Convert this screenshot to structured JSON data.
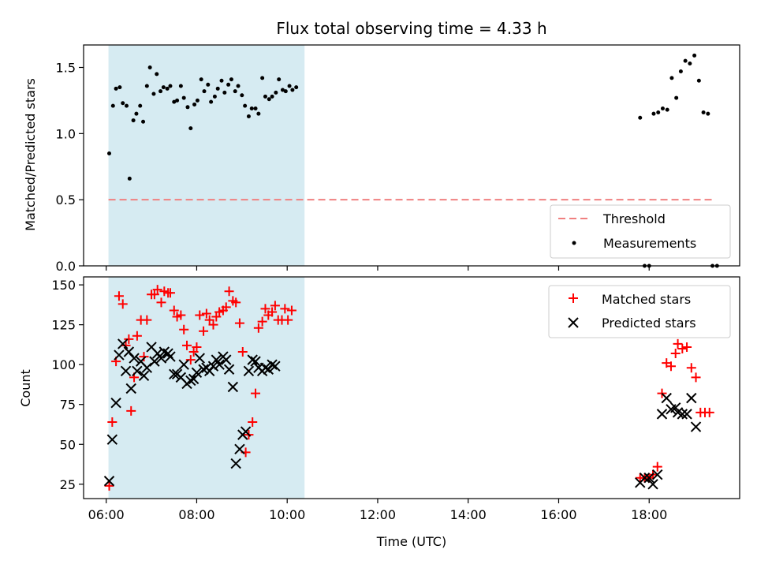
{
  "title": "Flux total observing time = 4.33 h",
  "colors": {
    "shade": "#add8e6",
    "threshold": "#f08080",
    "matched": "#ff0000",
    "predicted": "#000000",
    "measurement": "#000000"
  },
  "chart_data": [
    {
      "type": "scatter",
      "panel": "top",
      "ylabel": "Matched/Predicted stars",
      "xlim": [
        "05:30",
        "20:00"
      ],
      "ylim": [
        0,
        1.67
      ],
      "yticks": [
        "0.0",
        "0.5",
        "1.0",
        "1.5"
      ],
      "shaded_region": [
        "06:03",
        "10:23"
      ],
      "threshold": {
        "y": 0.5,
        "x_range": [
          "06:03",
          "19:25"
        ],
        "style": "dashed"
      },
      "legend": {
        "position": "lower-right",
        "entries": [
          "Threshold",
          "Measurements"
        ]
      },
      "series": [
        {
          "name": "Measurements",
          "marker": "dot",
          "points": [
            [
              "06:04",
              0.85
            ],
            [
              "06:09",
              1.21
            ],
            [
              "06:13",
              1.34
            ],
            [
              "06:18",
              1.35
            ],
            [
              "06:22",
              1.23
            ],
            [
              "06:27",
              1.21
            ],
            [
              "06:31",
              0.66
            ],
            [
              "06:36",
              1.1
            ],
            [
              "06:40",
              1.15
            ],
            [
              "06:45",
              1.21
            ],
            [
              "06:49",
              1.09
            ],
            [
              "06:54",
              1.36
            ],
            [
              "06:58",
              1.5
            ],
            [
              "07:03",
              1.3
            ],
            [
              "07:07",
              1.45
            ],
            [
              "07:12",
              1.32
            ],
            [
              "07:16",
              1.35
            ],
            [
              "07:21",
              1.34
            ],
            [
              "07:25",
              1.36
            ],
            [
              "07:30",
              1.24
            ],
            [
              "07:34",
              1.25
            ],
            [
              "07:39",
              1.36
            ],
            [
              "07:43",
              1.27
            ],
            [
              "07:48",
              1.2
            ],
            [
              "07:52",
              1.04
            ],
            [
              "07:57",
              1.22
            ],
            [
              "08:01",
              1.25
            ],
            [
              "08:06",
              1.41
            ],
            [
              "08:10",
              1.32
            ],
            [
              "08:15",
              1.37
            ],
            [
              "08:19",
              1.24
            ],
            [
              "08:24",
              1.28
            ],
            [
              "08:28",
              1.34
            ],
            [
              "08:33",
              1.4
            ],
            [
              "08:37",
              1.31
            ],
            [
              "08:42",
              1.37
            ],
            [
              "08:46",
              1.41
            ],
            [
              "08:51",
              1.32
            ],
            [
              "08:55",
              1.36
            ],
            [
              "09:00",
              1.29
            ],
            [
              "09:04",
              1.21
            ],
            [
              "09:09",
              1.13
            ],
            [
              "09:13",
              1.19
            ],
            [
              "09:18",
              1.19
            ],
            [
              "09:22",
              1.15
            ],
            [
              "09:27",
              1.42
            ],
            [
              "09:31",
              1.28
            ],
            [
              "09:36",
              1.26
            ],
            [
              "09:40",
              1.28
            ],
            [
              "09:45",
              1.31
            ],
            [
              "09:49",
              1.41
            ],
            [
              "09:54",
              1.33
            ],
            [
              "09:58",
              1.32
            ],
            [
              "10:03",
              1.36
            ],
            [
              "10:07",
              1.33
            ],
            [
              "10:12",
              1.35
            ],
            [
              "17:48",
              1.12
            ],
            [
              "17:54",
              0.0
            ],
            [
              "18:00",
              0.0
            ],
            [
              "18:06",
              1.15
            ],
            [
              "18:12",
              1.16
            ],
            [
              "18:18",
              1.19
            ],
            [
              "18:24",
              1.18
            ],
            [
              "18:30",
              1.42
            ],
            [
              "18:36",
              1.27
            ],
            [
              "18:42",
              1.47
            ],
            [
              "18:48",
              1.55
            ],
            [
              "18:54",
              1.53
            ],
            [
              "19:00",
              1.59
            ],
            [
              "19:06",
              1.4
            ],
            [
              "19:12",
              1.16
            ],
            [
              "19:18",
              1.15
            ],
            [
              "19:24",
              0.0
            ],
            [
              "19:30",
              0.0
            ]
          ]
        }
      ]
    },
    {
      "type": "scatter",
      "panel": "bottom",
      "xlabel": "Time (UTC)",
      "ylabel": "Count",
      "xlim": [
        "05:30",
        "20:00"
      ],
      "ylim": [
        16,
        155
      ],
      "yticks": [
        25,
        50,
        75,
        100,
        125,
        150
      ],
      "xticks": [
        "06:00",
        "08:00",
        "10:00",
        "12:00",
        "14:00",
        "16:00",
        "18:00"
      ],
      "shaded_region": [
        "06:03",
        "10:23"
      ],
      "legend": {
        "position": "upper-right",
        "entries": [
          "Matched stars",
          "Predicted stars"
        ]
      },
      "series": [
        {
          "name": "Matched stars",
          "marker": "plus",
          "points": [
            [
              "06:04",
              24
            ],
            [
              "06:08",
              64
            ],
            [
              "06:13",
              102
            ],
            [
              "06:17",
              143
            ],
            [
              "06:22",
              138
            ],
            [
              "06:26",
              112
            ],
            [
              "06:30",
              116
            ],
            [
              "06:33",
              71
            ],
            [
              "06:37",
              92
            ],
            [
              "06:41",
              118
            ],
            [
              "06:46",
              128
            ],
            [
              "06:50",
              105
            ],
            [
              "06:54",
              128
            ],
            [
              "07:00",
              144
            ],
            [
              "07:04",
              144
            ],
            [
              "07:08",
              147
            ],
            [
              "07:13",
              139
            ],
            [
              "07:17",
              146
            ],
            [
              "07:22",
              145
            ],
            [
              "07:25",
              145
            ],
            [
              "07:30",
              134
            ],
            [
              "07:34",
              130
            ],
            [
              "07:39",
              131
            ],
            [
              "07:43",
              122
            ],
            [
              "07:47",
              112
            ],
            [
              "07:52",
              103
            ],
            [
              "07:56",
              108
            ],
            [
              "08:00",
              111
            ],
            [
              "08:04",
              131
            ],
            [
              "08:09",
              121
            ],
            [
              "08:13",
              132
            ],
            [
              "08:17",
              128
            ],
            [
              "08:22",
              125
            ],
            [
              "08:26",
              130
            ],
            [
              "08:30",
              133
            ],
            [
              "08:35",
              134
            ],
            [
              "08:39",
              136
            ],
            [
              "08:43",
              146
            ],
            [
              "08:48",
              140
            ],
            [
              "08:52",
              139
            ],
            [
              "08:57",
              126
            ],
            [
              "09:01",
              108
            ],
            [
              "09:05",
              45
            ],
            [
              "09:09",
              56
            ],
            [
              "09:14",
              64
            ],
            [
              "09:18",
              82
            ],
            [
              "09:22",
              123
            ],
            [
              "09:27",
              127
            ],
            [
              "09:31",
              135
            ],
            [
              "09:35",
              131
            ],
            [
              "09:40",
              133
            ],
            [
              "09:44",
              137
            ],
            [
              "09:48",
              128
            ],
            [
              "09:53",
              128
            ],
            [
              "09:57",
              135
            ],
            [
              "10:01",
              128
            ],
            [
              "10:06",
              134
            ],
            [
              "17:48",
              29
            ],
            [
              "17:54",
              29
            ],
            [
              "18:00",
              29
            ],
            [
              "18:05",
              31
            ],
            [
              "18:11",
              36
            ],
            [
              "18:17",
              82
            ],
            [
              "18:23",
              101
            ],
            [
              "18:29",
              99
            ],
            [
              "18:35",
              107
            ],
            [
              "18:38",
              113
            ],
            [
              "18:44",
              110
            ],
            [
              "18:50",
              111
            ],
            [
              "18:56",
              98
            ],
            [
              "19:02",
              92
            ],
            [
              "19:08",
              70
            ],
            [
              "19:14",
              70
            ],
            [
              "19:20",
              70
            ]
          ]
        },
        {
          "name": "Predicted stars",
          "marker": "x",
          "points": [
            [
              "06:04",
              27
            ],
            [
              "06:08",
              53
            ],
            [
              "06:13",
              76
            ],
            [
              "06:17",
              106
            ],
            [
              "06:22",
              113
            ],
            [
              "06:26",
              96
            ],
            [
              "06:30",
              108
            ],
            [
              "06:33",
              85
            ],
            [
              "06:37",
              104
            ],
            [
              "06:41",
              96
            ],
            [
              "06:46",
              102
            ],
            [
              "06:50",
              93
            ],
            [
              "06:54",
              98
            ],
            [
              "07:00",
              111
            ],
            [
              "07:04",
              102
            ],
            [
              "07:08",
              107
            ],
            [
              "07:13",
              104
            ],
            [
              "07:17",
              108
            ],
            [
              "07:22",
              107
            ],
            [
              "07:25",
              105
            ],
            [
              "07:30",
              94
            ],
            [
              "07:34",
              94
            ],
            [
              "07:39",
              92
            ],
            [
              "07:43",
              100
            ],
            [
              "07:47",
              88
            ],
            [
              "07:52",
              90
            ],
            [
              "07:56",
              91
            ],
            [
              "08:00",
              95
            ],
            [
              "08:04",
              104
            ],
            [
              "08:09",
              97
            ],
            [
              "08:13",
              98
            ],
            [
              "08:17",
              96
            ],
            [
              "08:22",
              99
            ],
            [
              "08:26",
              103
            ],
            [
              "08:30",
              100
            ],
            [
              "08:35",
              105
            ],
            [
              "08:39",
              103
            ],
            [
              "08:43",
              97
            ],
            [
              "08:48",
              86
            ],
            [
              "08:52",
              38
            ],
            [
              "08:57",
              47
            ],
            [
              "09:01",
              56
            ],
            [
              "09:05",
              58
            ],
            [
              "09:09",
              96
            ],
            [
              "09:14",
              103
            ],
            [
              "09:18",
              102
            ],
            [
              "09:22",
              98
            ],
            [
              "09:27",
              96
            ],
            [
              "09:31",
              98
            ],
            [
              "09:35",
              97
            ],
            [
              "09:40",
              100
            ],
            [
              "09:44",
              99
            ],
            [
              "17:48",
              26
            ],
            [
              "17:54",
              29
            ],
            [
              "18:00",
              29
            ],
            [
              "18:05",
              25
            ],
            [
              "18:11",
              31
            ],
            [
              "18:17",
              69
            ],
            [
              "18:23",
              79
            ],
            [
              "18:29",
              72
            ],
            [
              "18:35",
              73
            ],
            [
              "18:38",
              70
            ],
            [
              "18:44",
              69
            ],
            [
              "18:50",
              69
            ],
            [
              "18:56",
              79
            ],
            [
              "19:02",
              61
            ]
          ]
        }
      ]
    }
  ]
}
